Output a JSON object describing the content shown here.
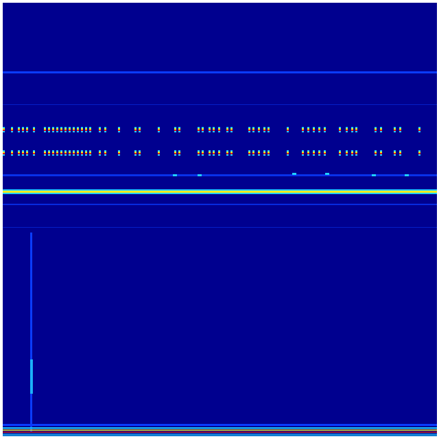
{
  "image": {
    "kind": "spectrogram-heatmap",
    "colormap": "jet",
    "colors": {
      "background": "#00008f",
      "line_blue": "#0a3cff",
      "line_cyan": "#20d0ff",
      "line_yellow": "#f0f020",
      "line_red": "#e02010"
    }
  }
}
